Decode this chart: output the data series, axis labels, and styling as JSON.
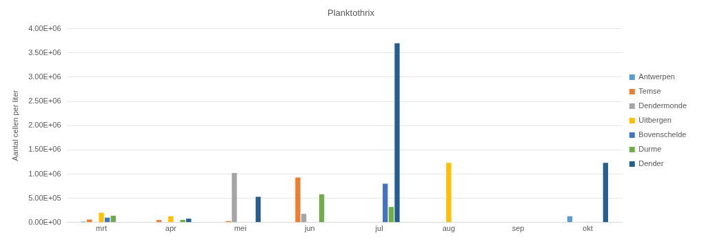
{
  "chart_data": {
    "type": "bar",
    "title": "Planktothrix",
    "ylabel": "Aantal cellen per liter",
    "categories": [
      "mrt",
      "apr",
      "mei",
      "jun",
      "jul",
      "aug",
      "sep",
      "okt"
    ],
    "series": [
      {
        "name": "Antwerpen",
        "color": "#5b9bd5",
        "values": [
          20000,
          0,
          0,
          0,
          0,
          0,
          0,
          130000
        ]
      },
      {
        "name": "Temse",
        "color": "#ed7d31",
        "values": [
          60000,
          50000,
          30000,
          930000,
          0,
          0,
          0,
          0
        ]
      },
      {
        "name": "Dendermonde",
        "color": "#a5a5a5",
        "values": [
          0,
          0,
          1020000,
          180000,
          0,
          0,
          0,
          0
        ]
      },
      {
        "name": "Uitbergen",
        "color": "#ffc000",
        "values": [
          200000,
          130000,
          0,
          0,
          0,
          1230000,
          0,
          0
        ]
      },
      {
        "name": "Bovenschelde",
        "color": "#4472c4",
        "values": [
          100000,
          0,
          0,
          0,
          800000,
          0,
          0,
          0
        ]
      },
      {
        "name": "Durme",
        "color": "#70ad47",
        "values": [
          140000,
          55000,
          0,
          580000,
          320000,
          0,
          0,
          0
        ]
      },
      {
        "name": "Dender",
        "color": "#255e91",
        "values": [
          0,
          80000,
          530000,
          0,
          3700000,
          0,
          0,
          1230000
        ]
      }
    ],
    "ylim": [
      0,
      4000000
    ],
    "yticks": [
      {
        "value": 0,
        "label": "0.00E+00"
      },
      {
        "value": 500000,
        "label": "5.00E+05"
      },
      {
        "value": 1000000,
        "label": "1.00E+06"
      },
      {
        "value": 1500000,
        "label": "1.50E+06"
      },
      {
        "value": 2000000,
        "label": "2.00E+06"
      },
      {
        "value": 2500000,
        "label": "2.50E+06"
      },
      {
        "value": 3000000,
        "label": "3.00E+06"
      },
      {
        "value": 3500000,
        "label": "3.50E+06"
      },
      {
        "value": 4000000,
        "label": "4.00E+06"
      }
    ],
    "grid": "y",
    "legend": "right"
  }
}
